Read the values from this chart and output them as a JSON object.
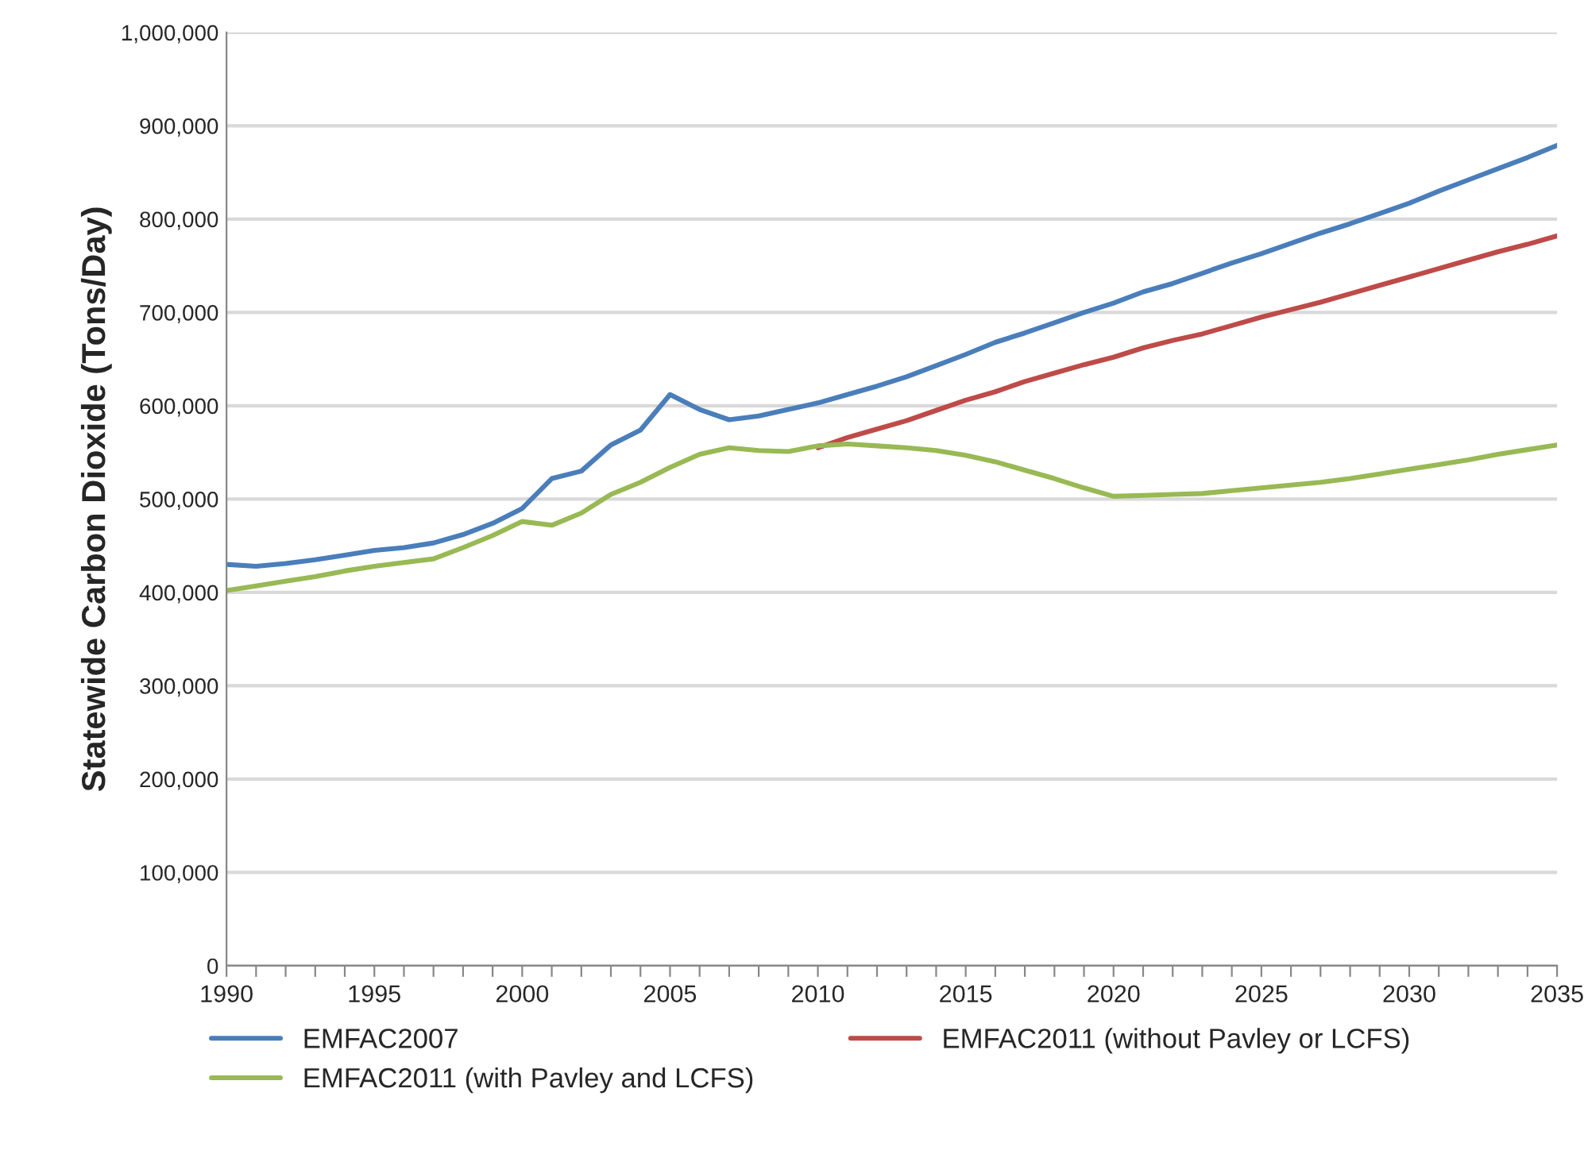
{
  "chart_data": {
    "type": "line",
    "ylabel": "Statewide Carbon Dioxide (Tons/Day)",
    "x": [
      1990,
      1991,
      1992,
      1993,
      1994,
      1995,
      1996,
      1997,
      1998,
      1999,
      2000,
      2001,
      2002,
      2003,
      2004,
      2005,
      2006,
      2007,
      2008,
      2009,
      2010,
      2011,
      2012,
      2013,
      2014,
      2015,
      2016,
      2017,
      2018,
      2019,
      2020,
      2021,
      2022,
      2023,
      2024,
      2025,
      2026,
      2027,
      2028,
      2029,
      2030,
      2031,
      2032,
      2033,
      2034,
      2035
    ],
    "series": [
      {
        "name": "EMFAC2007",
        "color": "#4a7ebb",
        "values": [
          430000,
          428000,
          431000,
          435000,
          440000,
          445000,
          448000,
          453000,
          462000,
          474000,
          490000,
          522000,
          530000,
          558000,
          574000,
          612000,
          596000,
          585000,
          589000,
          596000,
          603000,
          612000,
          621000,
          631000,
          643000,
          655000,
          668000,
          678000,
          689000,
          700000,
          710000,
          722000,
          731000,
          742000,
          753000,
          763000,
          774000,
          785000,
          795000,
          806000,
          817000,
          830000,
          842000,
          854000,
          866000,
          879000
        ]
      },
      {
        "name": "EMFAC2011 (without Pavley or LCFS)",
        "color": "#be4b48",
        "values": [
          null,
          null,
          null,
          null,
          null,
          null,
          null,
          null,
          null,
          null,
          null,
          null,
          null,
          null,
          null,
          null,
          null,
          null,
          null,
          null,
          555000,
          566000,
          575000,
          584000,
          595000,
          606000,
          615000,
          626000,
          635000,
          644000,
          652000,
          662000,
          670000,
          677000,
          686000,
          695000,
          703000,
          711000,
          720000,
          729000,
          738000,
          747000,
          756000,
          765000,
          773000,
          782000
        ]
      },
      {
        "name": "EMFAC2011 (with Pavley and LCFS)",
        "color": "#98b954",
        "values": [
          402000,
          407000,
          412000,
          417000,
          423000,
          428000,
          432000,
          436000,
          448000,
          461000,
          476000,
          472000,
          485000,
          505000,
          518000,
          534000,
          548000,
          555000,
          552000,
          551000,
          557000,
          559000,
          557000,
          555000,
          552000,
          547000,
          540000,
          531000,
          522000,
          512000,
          503000,
          504000,
          505000,
          506000,
          509000,
          512000,
          515000,
          518000,
          522000,
          527000,
          532000,
          537000,
          542000,
          548000,
          553000,
          558000
        ]
      }
    ],
    "xlim": [
      1990,
      2035
    ],
    "xticks": [
      1990,
      {
        "value": 1991,
        "label": null
      },
      {
        "value": 1992,
        "label": null
      },
      {
        "value": 1993,
        "label": null
      },
      {
        "value": 1994,
        "label": null
      },
      1995,
      {
        "value": 1996,
        "label": null
      },
      {
        "value": 1997,
        "label": null
      },
      {
        "value": 1998,
        "label": null
      },
      {
        "value": 1999,
        "label": null
      },
      2000,
      {
        "value": 2001,
        "label": null
      },
      {
        "value": 2002,
        "label": null
      },
      {
        "value": 2003,
        "label": null
      },
      {
        "value": 2004,
        "label": null
      },
      2005,
      {
        "value": 2006,
        "label": null
      },
      {
        "value": 2007,
        "label": null
      },
      {
        "value": 2008,
        "label": null
      },
      {
        "value": 2009,
        "label": null
      },
      2010,
      {
        "value": 2011,
        "label": null
      },
      {
        "value": 2012,
        "label": null
      },
      {
        "value": 2013,
        "label": null
      },
      {
        "value": 2014,
        "label": null
      },
      2015,
      {
        "value": 2016,
        "label": null
      },
      {
        "value": 2017,
        "label": null
      },
      {
        "value": 2018,
        "label": null
      },
      {
        "value": 2019,
        "label": null
      },
      2020,
      {
        "value": 2021,
        "label": null
      },
      {
        "value": 2022,
        "label": null
      },
      {
        "value": 2023,
        "label": null
      },
      {
        "value": 2024,
        "label": null
      },
      2025,
      {
        "value": 2026,
        "label": null
      },
      {
        "value": 2027,
        "label": null
      },
      {
        "value": 2028,
        "label": null
      },
      {
        "value": 2029,
        "label": null
      },
      2030,
      {
        "value": 2031,
        "label": null
      },
      {
        "value": 2032,
        "label": null
      },
      {
        "value": 2033,
        "label": null
      },
      {
        "value": 2034,
        "label": null
      },
      2035
    ],
    "ylim": [
      0,
      1000000
    ],
    "yticks": [
      0,
      {
        "value": 100000,
        "label": "100,000"
      },
      {
        "value": 200000,
        "label": "200,000"
      },
      {
        "value": 300000,
        "label": "300,000"
      },
      {
        "value": 400000,
        "label": "400,000"
      },
      {
        "value": 500000,
        "label": "500,000"
      },
      {
        "value": 600000,
        "label": "600,000"
      },
      {
        "value": 700000,
        "label": "700,000"
      },
      {
        "value": 800000,
        "label": "800,000"
      },
      {
        "value": 900000,
        "label": "900,000"
      },
      {
        "value": 1000000,
        "label": "1,000,000"
      }
    ],
    "grid": "y",
    "legend": "bottom",
    "marker": "none",
    "line_style": "solid"
  }
}
